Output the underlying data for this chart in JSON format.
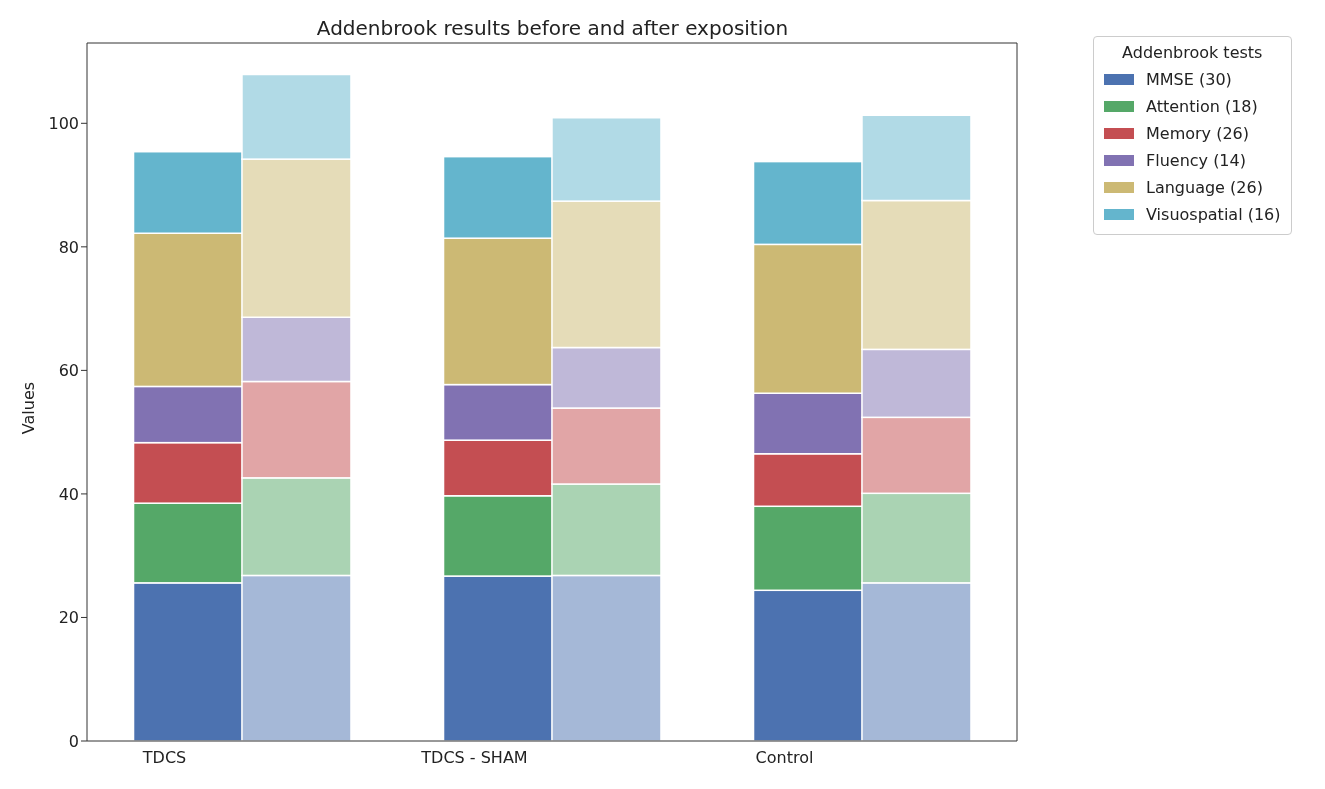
{
  "chart_data": {
    "type": "bar",
    "title": "Addenbrook results before and after exposition",
    "ylabel": "Values",
    "legend_title": "Addenbrook tests",
    "legend": "top right",
    "stacked": true,
    "categories": [
      "TDCS",
      null,
      "TDCS - SHAM",
      null,
      "Control",
      null
    ],
    "series": [
      {
        "name": "MMSE (30)",
        "color": "#4c72b0",
        "values": [
          25.6,
          null,
          26.7,
          null,
          24.4,
          null
        ]
      },
      {
        "name": "Attention (18)",
        "color": "#55a868",
        "values": [
          12.9,
          null,
          13.0,
          null,
          13.6,
          null
        ]
      },
      {
        "name": "Memory (26)",
        "color": "#c44e52",
        "values": [
          9.8,
          null,
          9.0,
          null,
          8.5,
          null
        ]
      },
      {
        "name": "Fluency (14)",
        "color": "#8172b2",
        "values": [
          9.1,
          null,
          9.0,
          null,
          9.8,
          null
        ]
      },
      {
        "name": "Language (26)",
        "color": "#ccb974",
        "values": [
          24.8,
          null,
          23.7,
          null,
          24.1,
          null
        ]
      },
      {
        "name": "Visuospatial (16)",
        "color": "#64b5cd",
        "values": [
          13.2,
          null,
          13.2,
          null,
          13.4,
          null
        ]
      },
      {
        "color": "#a5b8d7",
        "values": [
          null,
          26.8,
          null,
          26.8,
          null,
          25.6
        ]
      },
      {
        "color": "#aad3b3",
        "values": [
          null,
          15.8,
          null,
          14.8,
          null,
          14.5
        ]
      },
      {
        "color": "#e1a5a6",
        "values": [
          null,
          15.6,
          null,
          12.3,
          null,
          12.3
        ]
      },
      {
        "color": "#bfb8d8",
        "values": [
          null,
          10.4,
          null,
          9.8,
          null,
          11.0
        ]
      },
      {
        "color": "#e5dcb8",
        "values": [
          null,
          25.6,
          null,
          23.7,
          null,
          24.1
        ]
      },
      {
        "color": "#b1dae6",
        "values": [
          null,
          13.7,
          null,
          13.5,
          null,
          13.8
        ]
      }
    ],
    "ylim": [
      0,
      113
    ],
    "yticks": [
      0,
      20,
      40,
      60,
      80,
      100
    ]
  }
}
